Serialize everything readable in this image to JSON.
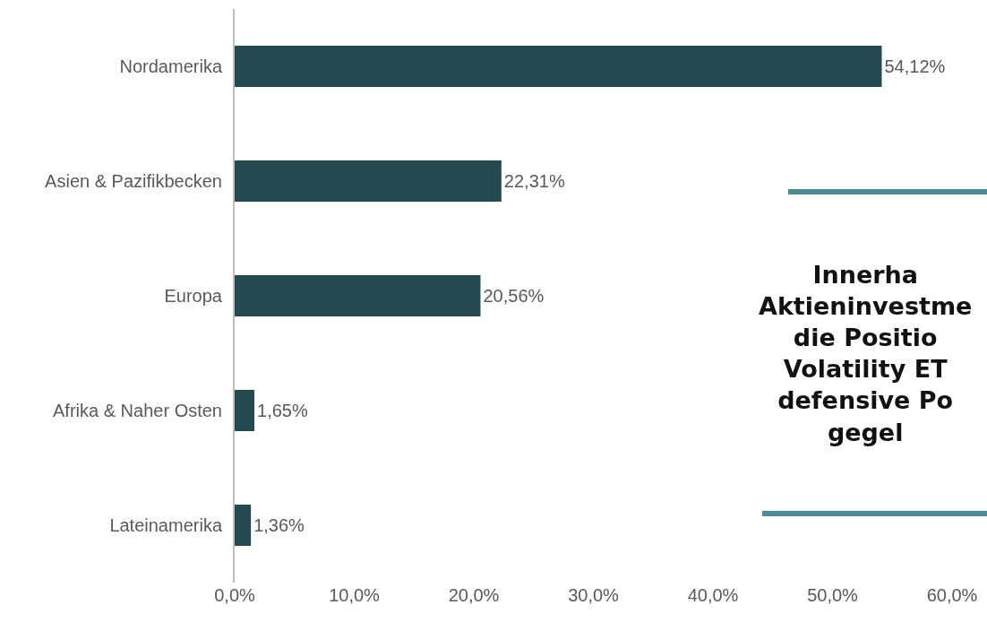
{
  "chart_data": {
    "type": "bar",
    "orientation": "horizontal",
    "categories": [
      "Nordamerika",
      "Asien & Pazifikbecken",
      "Europa",
      "Afrika & Naher Osten",
      "Lateinamerika"
    ],
    "values": [
      54.12,
      22.31,
      20.56,
      1.65,
      1.36
    ],
    "value_labels": [
      "54,12%",
      "22,31%",
      "20,56%",
      "1,65%",
      "1,36%"
    ],
    "color": "#234b4f",
    "xlim": [
      0,
      60
    ],
    "xticks": [
      {
        "value": 0,
        "label": "0,0%"
      },
      {
        "value": 10,
        "label": "10,0%"
      },
      {
        "value": 20,
        "label": "20,0%"
      },
      {
        "value": 30,
        "label": "30,0%"
      },
      {
        "value": 40,
        "label": "40,0%"
      },
      {
        "value": 50,
        "label": "50,0%"
      },
      {
        "value": 60,
        "label": "60,0%"
      }
    ],
    "annotations": [
      "Innerha\nAktieninvestme\ndie Positio\nVolatility ET\ndefensive Po\ngegel"
    ]
  }
}
